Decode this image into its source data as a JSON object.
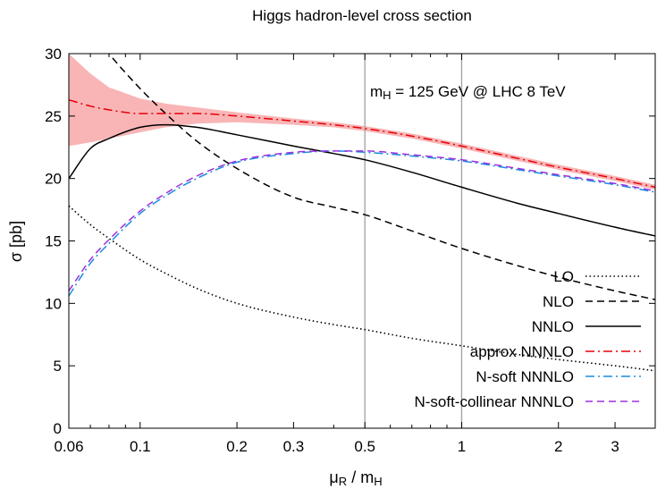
{
  "chart_data": {
    "type": "line",
    "title": "Higgs hadron-level cross section",
    "xlabel": {
      "main": "μ",
      "sub1": "R",
      "mid": " / m",
      "sub2": "H"
    },
    "ylabel": "σ [pb]",
    "x_scale": "log",
    "xlim": [
      0.06,
      4
    ],
    "ylim": [
      0,
      30
    ],
    "x_ticks": [
      {
        "value": 0.06,
        "label": "0.06"
      },
      {
        "value": 0.1,
        "label": "0.1"
      },
      {
        "value": 0.2,
        "label": "0.2"
      },
      {
        "value": 0.3,
        "label": "0.3"
      },
      {
        "value": 0.5,
        "label": "0.5"
      },
      {
        "value": 1,
        "label": "1"
      },
      {
        "value": 2,
        "label": "2"
      },
      {
        "value": 3,
        "label": "3"
      }
    ],
    "y_ticks": [
      {
        "value": 0,
        "label": "0"
      },
      {
        "value": 5,
        "label": "5"
      },
      {
        "value": 10,
        "label": "10"
      },
      {
        "value": 15,
        "label": "15"
      },
      {
        "value": 20,
        "label": "20"
      },
      {
        "value": 25,
        "label": "25"
      },
      {
        "value": 30,
        "label": "30"
      }
    ],
    "vertical_lines": [
      0.5,
      1
    ],
    "annotation": {
      "m": "m",
      "sub": "H",
      "rest": " = 125 GeV  @  LHC 8 TeV"
    },
    "legend_position": "bottom-right",
    "x": [
      0.06,
      0.07,
      0.08,
      0.1,
      0.12,
      0.15,
      0.2,
      0.3,
      0.4,
      0.5,
      0.7,
      1.0,
      1.5,
      2.0,
      3.0,
      4.0
    ],
    "series": [
      {
        "name": "LO",
        "style": "dotted",
        "color": "#000000",
        "values": [
          17.8,
          16.3,
          15.2,
          13.5,
          12.4,
          11.2,
          10.0,
          8.9,
          8.3,
          7.9,
          7.2,
          6.6,
          5.9,
          5.5,
          5.0,
          4.6
        ]
      },
      {
        "name": "NLO",
        "style": "dashed",
        "color": "#000000",
        "values": [
          34.0,
          32.0,
          30.0,
          27.2,
          25.2,
          23.0,
          20.8,
          18.5,
          17.7,
          17.1,
          15.8,
          14.4,
          13.0,
          12.1,
          11.0,
          10.3
        ]
      },
      {
        "name": "NNLO",
        "style": "solid",
        "color": "#000000",
        "values": [
          20.0,
          22.4,
          23.2,
          24.1,
          24.3,
          24.1,
          23.5,
          22.6,
          22.0,
          21.5,
          20.5,
          19.3,
          18.0,
          17.2,
          16.1,
          15.4
        ]
      },
      {
        "name": "approx NNNLO",
        "style": "dashdot",
        "color": "#e8000b",
        "values": [
          26.3,
          25.8,
          25.5,
          25.2,
          25.2,
          25.2,
          25.0,
          24.6,
          24.3,
          24.0,
          23.4,
          22.6,
          21.6,
          20.9,
          20.0,
          19.3
        ]
      },
      {
        "name": "N-soft NNNLO",
        "style": "dashdot",
        "color": "#1a8be0",
        "values": [
          10.6,
          13.2,
          14.8,
          17.2,
          18.6,
          20.0,
          21.3,
          22.0,
          22.2,
          22.1,
          21.8,
          21.4,
          20.7,
          20.2,
          19.5,
          18.9
        ]
      },
      {
        "name": "N-soft-collinear NNNLO",
        "style": "dashed",
        "color": "#9b30e0",
        "values": [
          11.0,
          13.5,
          15.1,
          17.4,
          18.8,
          20.2,
          21.4,
          22.1,
          22.2,
          22.2,
          21.9,
          21.5,
          20.8,
          20.3,
          19.6,
          19.0
        ]
      }
    ],
    "band": {
      "color": "#f8a8a8",
      "x": [
        0.06,
        0.07,
        0.08,
        0.1,
        0.12,
        0.15,
        0.2,
        0.3,
        0.4,
        0.5,
        0.7,
        1.0,
        1.5,
        2.0,
        3.0,
        4.0
      ],
      "upper": [
        30.0,
        28.4,
        27.3,
        26.4,
        26.0,
        25.7,
        25.3,
        24.8,
        24.5,
        24.2,
        23.6,
        22.8,
        21.8,
        21.1,
        20.2,
        19.5
      ],
      "lower": [
        22.6,
        22.9,
        23.2,
        23.7,
        24.1,
        24.4,
        24.5,
        24.3,
        24.1,
        23.8,
        23.2,
        22.4,
        21.4,
        20.7,
        19.8,
        19.1
      ]
    }
  }
}
